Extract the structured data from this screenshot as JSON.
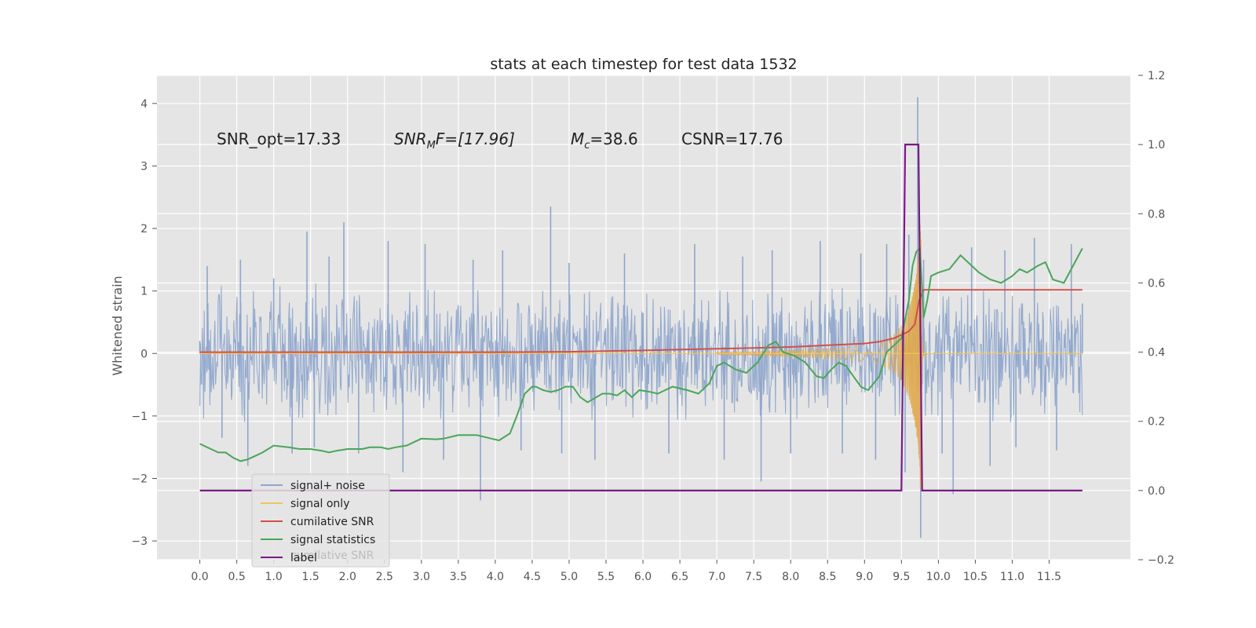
{
  "chart_data": {
    "type": "line",
    "title": "stats at each timestep for test data 1532",
    "ylabel": "Whitened strain",
    "xlabel": "",
    "xlim": [
      -0.58,
      12.6
    ],
    "ylim": [
      -3.3,
      4.45
    ],
    "y2lim": [
      -0.2,
      1.2
    ],
    "xticks": [
      "0.0",
      "0.5",
      "1.0",
      "1.5",
      "2.0",
      "2.5",
      "3.0",
      "3.5",
      "4.0",
      "4.5",
      "5.0",
      "5.5",
      "6.0",
      "6.5",
      "7.0",
      "7.5",
      "8.0",
      "8.5",
      "9.0",
      "9.5",
      "10.0",
      "10.5",
      "11.0",
      "11.5"
    ],
    "yticks": [
      "−3",
      "−2",
      "−1",
      "0",
      "1",
      "2",
      "3",
      "4"
    ],
    "y2ticks": [
      "−0.2",
      "0.0",
      "0.2",
      "0.4",
      "0.6",
      "0.8",
      "1.0",
      "1.2"
    ],
    "grid": true,
    "legend_position": "lower-left",
    "annotations": {
      "snr_opt": "SNR_opt=17.33",
      "snr_mf_main": "SNR",
      "snr_mf_sub": "M",
      "snr_mf_tail": "F=[17.96]",
      "mc_main": "M",
      "mc_sub": "c",
      "mc_tail": "=38.6",
      "csnr": "CSNR=17.76"
    },
    "legend": [
      {
        "label": "signal+ noise",
        "color": "#8fa6cc"
      },
      {
        "label": "signal only",
        "color": "#f2c55c"
      },
      {
        "label": "cumilative SNR",
        "color": "#d0504b"
      },
      {
        "label": "signal statistics",
        "color": "#4aa55a"
      },
      {
        "label": "label",
        "color": "#7a1a86"
      }
    ],
    "legend_ghost_text": "cumilative SNR",
    "series": [
      {
        "name": "signal+ noise",
        "axis": "left",
        "color": "#8fa6cc",
        "note": "whitened noisy strain, approx. between -1 and 1 with spikes",
        "x": [
          0.0,
          0.1,
          0.3,
          0.55,
          0.65,
          1.0,
          1.25,
          1.45,
          1.55,
          1.75,
          1.95,
          2.15,
          2.55,
          2.75,
          3.05,
          3.3,
          3.7,
          3.8,
          4.1,
          4.35,
          4.75,
          4.9,
          5.0,
          5.35,
          5.75,
          6.0,
          6.35,
          6.7,
          7.1,
          7.35,
          7.6,
          7.75,
          8.0,
          8.4,
          8.7,
          8.95,
          9.15,
          9.3,
          9.55,
          9.6,
          9.72,
          9.76,
          9.8,
          10.05,
          10.2,
          10.45,
          10.7,
          10.9,
          11.05,
          11.3,
          11.6,
          11.8,
          11.95
        ],
        "y": [
          0.2,
          1.4,
          -1.35,
          1.5,
          -1.8,
          1.2,
          -1.6,
          1.95,
          -1.5,
          1.55,
          2.1,
          -1.6,
          1.8,
          -1.9,
          1.75,
          -1.7,
          1.5,
          -2.35,
          1.65,
          -1.55,
          2.35,
          -1.6,
          1.45,
          -1.7,
          1.6,
          0.65,
          -1.6,
          1.75,
          -1.7,
          1.55,
          -2.05,
          1.65,
          -1.6,
          1.8,
          -1.6,
          1.6,
          -1.7,
          1.75,
          -1.9,
          1.9,
          4.1,
          -2.95,
          1.5,
          -1.6,
          -2.25,
          1.7,
          -1.8,
          1.65,
          -1.5,
          1.85,
          -1.55,
          1.75,
          0.8
        ]
      },
      {
        "name": "signal only",
        "axis": "left",
        "color": "#f2c55c",
        "note": "chirp envelope amplitude, oscillating between +env and -env",
        "x": [
          0.0,
          5.0,
          6.0,
          7.0,
          7.5,
          8.0,
          8.5,
          9.0,
          9.2,
          9.4,
          9.5,
          9.6,
          9.65,
          9.7,
          9.73,
          9.76,
          9.78,
          9.8,
          10.0,
          12.0
        ],
        "y": [
          0.0,
          0.005,
          0.01,
          0.02,
          0.03,
          0.05,
          0.08,
          0.13,
          0.18,
          0.3,
          0.45,
          0.7,
          0.95,
          1.25,
          1.6,
          2.3,
          0.2,
          0.02,
          0.0,
          0.0
        ]
      },
      {
        "name": "cumilative SNR",
        "axis": "right",
        "color": "#d0504b",
        "x": [
          0.0,
          2.0,
          4.0,
          5.0,
          6.0,
          7.0,
          7.5,
          8.0,
          8.5,
          9.0,
          9.2,
          9.4,
          9.5,
          9.6,
          9.68,
          9.74,
          9.8,
          9.9,
          10.5,
          11.0,
          11.5,
          11.95
        ],
        "y": [
          0.4,
          0.4,
          0.4,
          0.401,
          0.405,
          0.41,
          0.412,
          0.415,
          0.42,
          0.425,
          0.43,
          0.44,
          0.45,
          0.46,
          0.48,
          0.55,
          0.58,
          0.58,
          0.58,
          0.58,
          0.58,
          0.58
        ]
      },
      {
        "name": "signal statistics",
        "axis": "right",
        "color": "#4aa55a",
        "x": [
          0.0,
          0.1,
          0.15,
          0.25,
          0.35,
          0.45,
          0.55,
          0.65,
          0.75,
          0.85,
          1.0,
          1.2,
          1.35,
          1.5,
          1.65,
          1.75,
          1.85,
          2.0,
          2.2,
          2.3,
          2.45,
          2.55,
          2.65,
          2.8,
          2.9,
          3.0,
          3.2,
          3.3,
          3.5,
          3.6,
          3.75,
          3.95,
          4.05,
          4.2,
          4.3,
          4.4,
          4.5,
          4.55,
          4.65,
          4.75,
          4.85,
          4.95,
          5.05,
          5.15,
          5.25,
          5.45,
          5.55,
          5.65,
          5.75,
          5.85,
          5.95,
          6.1,
          6.2,
          6.4,
          6.6,
          6.75,
          6.9,
          7.0,
          7.1,
          7.25,
          7.4,
          7.55,
          7.7,
          7.8,
          7.9,
          8.05,
          8.2,
          8.35,
          8.45,
          8.55,
          8.65,
          8.75,
          8.85,
          8.95,
          9.05,
          9.2,
          9.3,
          9.4,
          9.5,
          9.6,
          9.65,
          9.7,
          9.75,
          9.8,
          9.85,
          9.9,
          10.0,
          10.15,
          10.3,
          10.4,
          10.55,
          10.7,
          10.85,
          11.0,
          11.1,
          11.2,
          11.35,
          11.45,
          11.55,
          11.7,
          11.85,
          11.95
        ],
        "y": [
          0.135,
          0.125,
          0.12,
          0.11,
          0.11,
          0.095,
          0.085,
          0.09,
          0.1,
          0.11,
          0.13,
          0.125,
          0.12,
          0.12,
          0.115,
          0.11,
          0.115,
          0.12,
          0.12,
          0.125,
          0.125,
          0.12,
          0.125,
          0.13,
          0.14,
          0.15,
          0.148,
          0.15,
          0.16,
          0.16,
          0.16,
          0.15,
          0.145,
          0.165,
          0.22,
          0.28,
          0.3,
          0.3,
          0.29,
          0.285,
          0.29,
          0.3,
          0.3,
          0.27,
          0.255,
          0.28,
          0.28,
          0.275,
          0.29,
          0.27,
          0.29,
          0.285,
          0.28,
          0.3,
          0.29,
          0.28,
          0.31,
          0.36,
          0.37,
          0.35,
          0.34,
          0.37,
          0.42,
          0.43,
          0.4,
          0.39,
          0.37,
          0.33,
          0.325,
          0.35,
          0.37,
          0.36,
          0.33,
          0.3,
          0.29,
          0.33,
          0.4,
          0.42,
          0.44,
          0.55,
          0.65,
          0.69,
          0.7,
          0.5,
          0.55,
          0.62,
          0.63,
          0.64,
          0.68,
          0.66,
          0.63,
          0.61,
          0.6,
          0.62,
          0.64,
          0.63,
          0.65,
          0.66,
          0.61,
          0.6,
          0.66,
          0.7
        ]
      },
      {
        "name": "label",
        "axis": "right",
        "color": "#7a1a86",
        "x": [
          0.0,
          9.5,
          9.55,
          9.73,
          9.78,
          11.95
        ],
        "y": [
          0.0,
          0.0,
          1.0,
          1.0,
          0.0,
          0.0
        ]
      }
    ]
  }
}
